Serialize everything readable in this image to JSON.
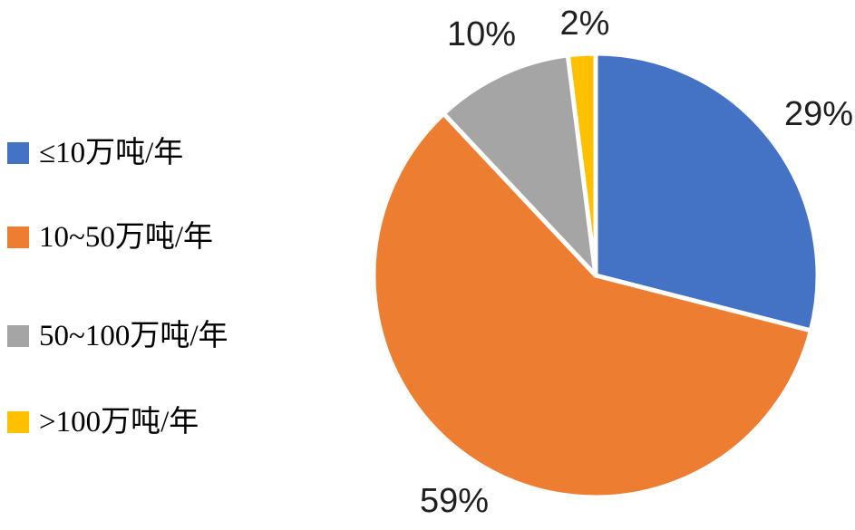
{
  "figure": {
    "background_color": "#ffffff",
    "label_text_color": "#1f1f1f",
    "legend_text_color": "#000000"
  },
  "chart_data": {
    "type": "pie",
    "title": "",
    "legend_position": "left",
    "start_angle_deg": 0,
    "direction": "clockwise",
    "stroke_color": "#FFFFFF",
    "stroke_width": 5,
    "label_format": "percent",
    "slices": [
      {
        "name": "≤10万吨/年",
        "value": 29,
        "label": "29%",
        "color": "#4472C4"
      },
      {
        "name": "10~50万吨/年",
        "value": 59,
        "label": "59%",
        "color": "#ED7D31"
      },
      {
        "name": "50~100万吨/年",
        "value": 10,
        "label": "10%",
        "color": "#A5A5A5"
      },
      {
        "name": ">100万吨/年",
        "value": 2,
        "label": "2%",
        "color": "#FFC000"
      }
    ]
  }
}
